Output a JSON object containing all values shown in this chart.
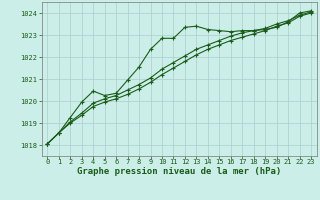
{
  "title": "Graphe pression niveau de la mer (hPa)",
  "bg_color": "#cceee8",
  "grid_color": "#aacccc",
  "line_color": "#1a5c1a",
  "ylim": [
    1017.5,
    1024.5
  ],
  "xlim": [
    -0.5,
    23.5
  ],
  "yticks": [
    1018,
    1019,
    1020,
    1021,
    1022,
    1023,
    1024
  ],
  "xticks": [
    0,
    1,
    2,
    3,
    4,
    5,
    6,
    7,
    8,
    9,
    10,
    11,
    12,
    13,
    14,
    15,
    16,
    17,
    18,
    19,
    20,
    21,
    22,
    23
  ],
  "series1": [
    1018.05,
    1018.55,
    1019.25,
    1019.95,
    1020.45,
    1020.25,
    1020.35,
    1020.95,
    1021.55,
    1022.35,
    1022.85,
    1022.85,
    1023.35,
    1023.4,
    1023.25,
    1023.2,
    1023.15,
    1023.2,
    1023.2,
    1023.25,
    1023.35,
    1023.6,
    1024.0,
    1024.1
  ],
  "series2": [
    1018.05,
    1018.55,
    1019.05,
    1019.45,
    1019.9,
    1020.1,
    1020.25,
    1020.5,
    1020.75,
    1021.05,
    1021.45,
    1021.75,
    1022.05,
    1022.35,
    1022.55,
    1022.75,
    1022.95,
    1023.1,
    1023.2,
    1023.3,
    1023.5,
    1023.65,
    1023.9,
    1024.05
  ],
  "series3": [
    1018.05,
    1018.55,
    1019.0,
    1019.35,
    1019.75,
    1019.95,
    1020.1,
    1020.3,
    1020.55,
    1020.85,
    1021.2,
    1021.5,
    1021.8,
    1022.1,
    1022.35,
    1022.55,
    1022.75,
    1022.9,
    1023.05,
    1023.2,
    1023.4,
    1023.55,
    1023.85,
    1024.0
  ],
  "title_fontsize": 6.5,
  "tick_fontsize": 5.0,
  "linewidth": 0.8,
  "markersize": 3.0
}
